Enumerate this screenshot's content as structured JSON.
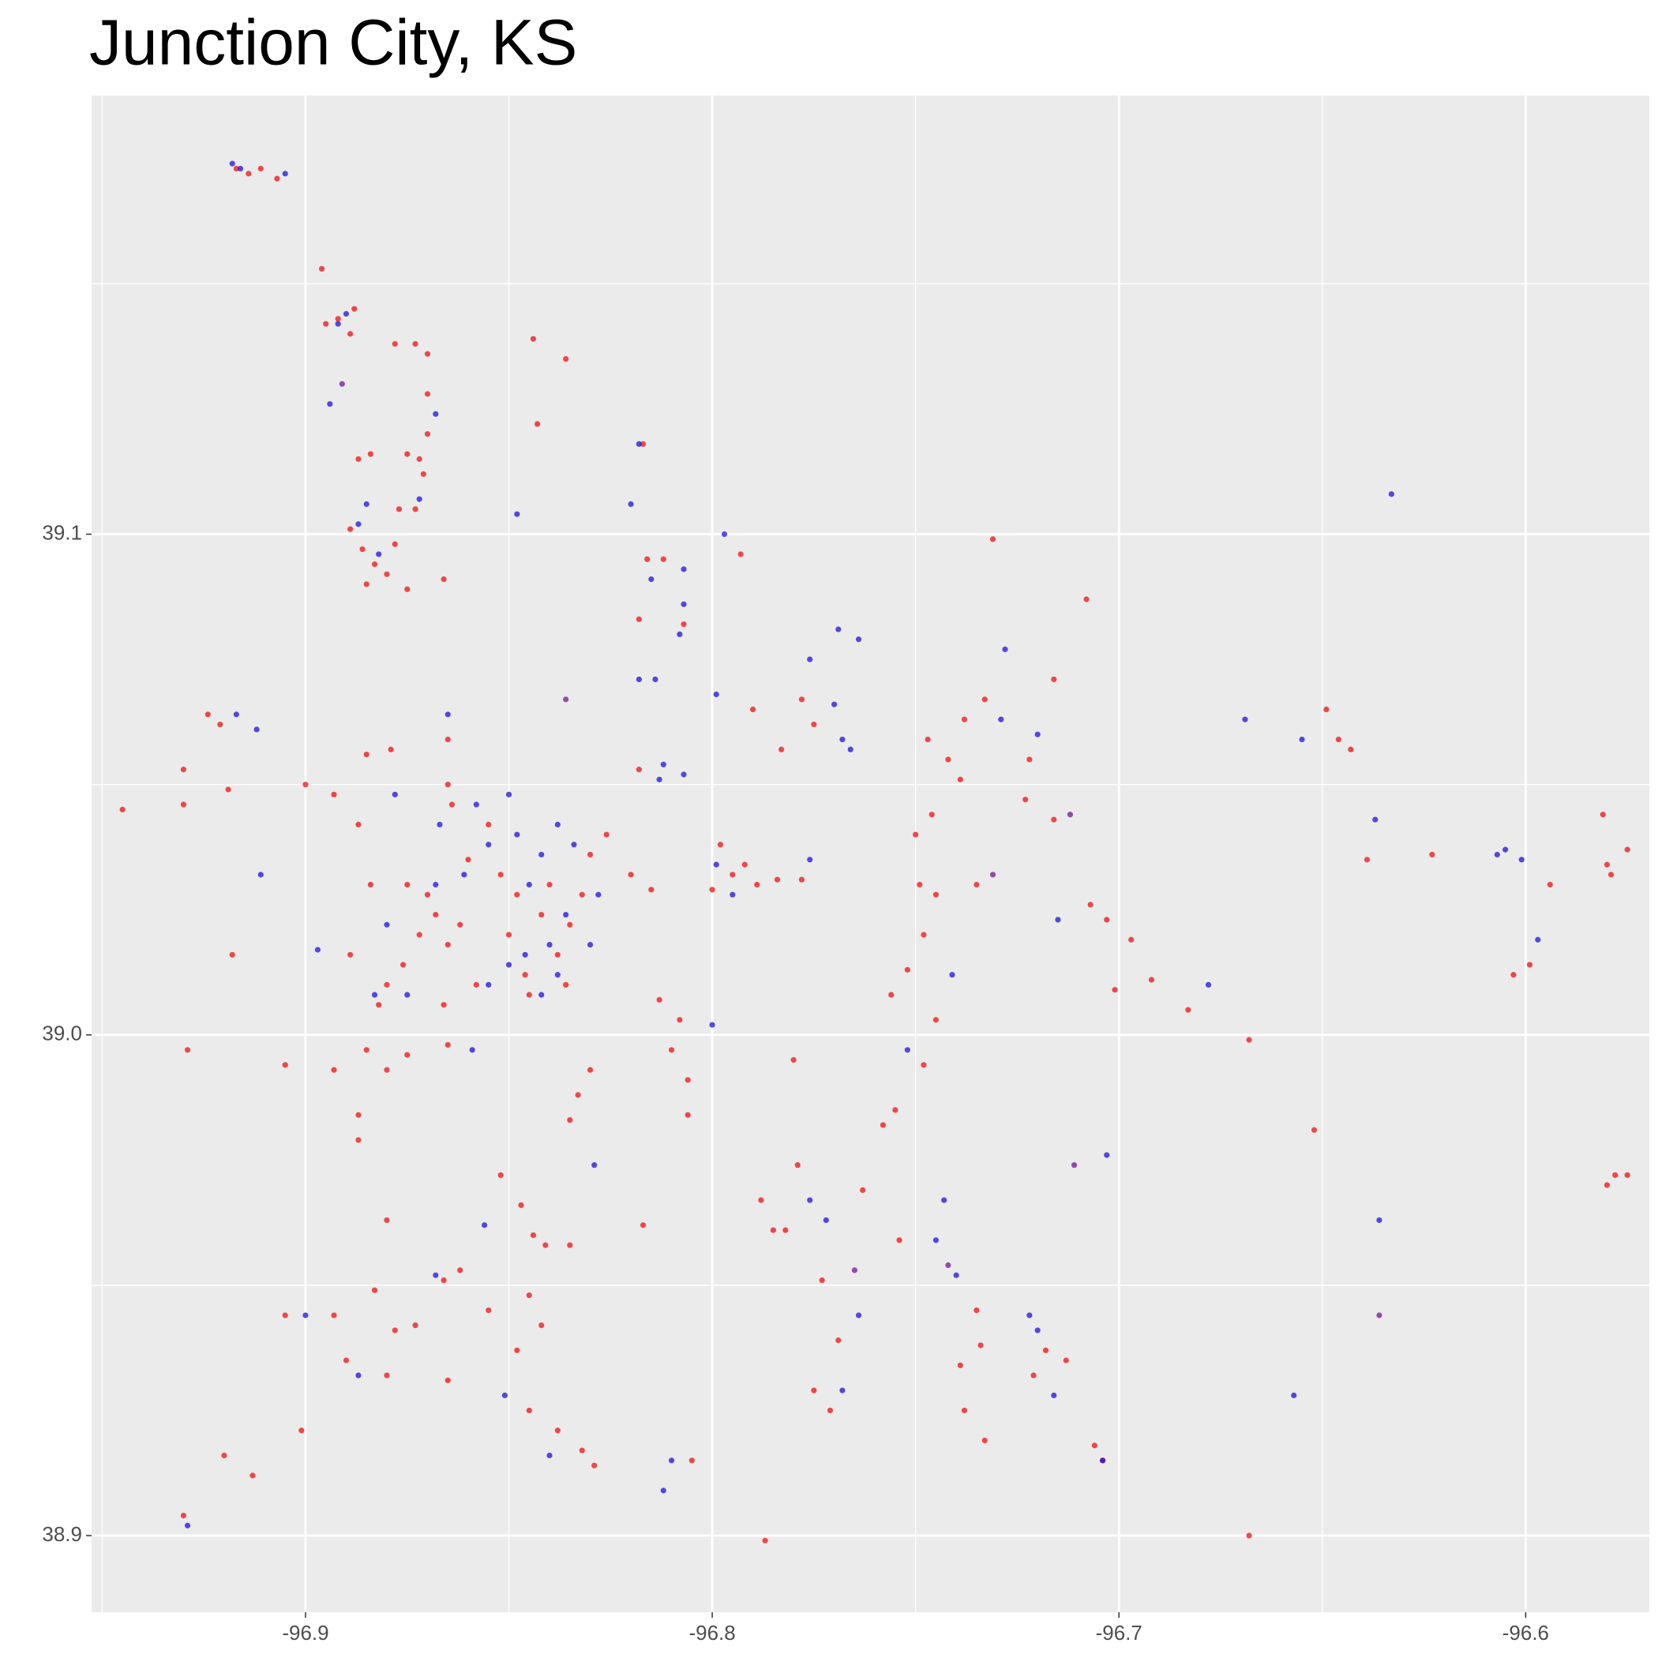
{
  "chart_data": {
    "type": "scatter",
    "title": "Junction City, KS",
    "xlim": [
      -96.9526,
      -96.5696
    ],
    "ylim": [
      38.8847,
      39.1876
    ],
    "xticks": [
      -96.9,
      -96.8,
      -96.7,
      -96.6
    ],
    "yticks": [
      {
        "value": 38.9,
        "label": "38.9"
      },
      {
        "value": 39,
        "label": "39.0"
      },
      {
        "value": 39.1,
        "label": "39.1"
      }
    ],
    "grid": true,
    "series": [
      {
        "color": "#ee1010",
        "x": [
          -96.917,
          -96.914,
          -96.911,
          -96.907,
          -96.896,
          -96.895,
          -96.892,
          -96.889,
          -96.888,
          -96.878,
          -96.873,
          -96.87,
          -96.87,
          -96.87,
          -96.871,
          -96.887,
          -96.884,
          -96.875,
          -96.872,
          -96.877,
          -96.873,
          -96.889,
          -96.886,
          -96.883,
          -96.88,
          -96.885,
          -96.878,
          -96.875,
          -96.866,
          -96.844,
          -96.836,
          -96.843,
          -96.817,
          -96.816,
          -96.812,
          -96.818,
          -96.807,
          -96.793,
          -96.778,
          -96.775,
          -96.783,
          -96.79,
          -96.731,
          -96.708,
          -96.716,
          -96.733,
          -96.738,
          -96.747,
          -96.742,
          -96.739,
          -96.746,
          -96.75,
          -96.749,
          -96.745,
          -96.748,
          -96.752,
          -96.756,
          -96.735,
          -96.723,
          -96.722,
          -96.716,
          -96.707,
          -96.703,
          -96.697,
          -96.701,
          -96.692,
          -96.683,
          -96.668,
          -96.652,
          -96.649,
          -96.646,
          -96.643,
          -96.639,
          -96.623,
          -96.594,
          -96.58,
          -96.581,
          -96.579,
          -96.575,
          -96.603,
          -96.599,
          -96.58,
          -96.578,
          -96.575,
          -96.668,
          -96.745,
          -96.748,
          -96.755,
          -96.758,
          -96.78,
          -96.83,
          -96.833,
          -96.835,
          -96.81,
          -96.806,
          -96.885,
          -96.875,
          -96.865,
          -96.88,
          -96.893,
          -96.905,
          -96.929,
          -96.887,
          -96.887,
          -96.852,
          -96.847,
          -96.844,
          -96.841,
          -96.835,
          -96.88,
          -96.866,
          -96.862,
          -96.855,
          -96.845,
          -96.842,
          -96.893,
          -96.883,
          -96.878,
          -96.873,
          -96.89,
          -96.88,
          -96.865,
          -96.848,
          -96.845,
          -96.838,
          -96.832,
          -96.829,
          -96.905,
          -96.901,
          -96.92,
          -96.913,
          -96.93,
          -96.785,
          -96.788,
          -96.782,
          -96.779,
          -96.773,
          -96.769,
          -96.775,
          -96.771,
          -96.763,
          -96.754,
          -96.735,
          -96.734,
          -96.739,
          -96.738,
          -96.733,
          -96.721,
          -96.718,
          -96.713,
          -96.706,
          -96.704,
          -96.787,
          -96.805,
          -96.817,
          -96.806,
          -96.88,
          -96.876,
          -96.872,
          -96.868,
          -96.865,
          -96.862,
          -96.858,
          -96.85,
          -96.846,
          -96.842,
          -96.838,
          -96.835,
          -96.832,
          -96.84,
          -96.845,
          -96.848,
          -96.836,
          -96.83,
          -96.826,
          -96.855,
          -96.86,
          -96.864,
          -96.865,
          -96.852,
          -96.87,
          -96.875,
          -96.884,
          -96.887,
          -96.893,
          -96.885,
          -96.879,
          -96.82,
          -96.818,
          -96.815,
          -96.798,
          -96.795,
          -96.792,
          -96.789,
          -96.8,
          -96.784,
          -96.778,
          -96.889,
          -96.882,
          -96.866,
          -96.9,
          -96.919,
          -96.93,
          -96.93,
          -96.921,
          -96.924,
          -96.945,
          -96.918,
          -96.865,
          -96.813,
          -96.808
        ],
        "values": [
          39.173,
          39.172,
          39.173,
          39.171,
          39.153,
          39.142,
          39.143,
          39.14,
          39.145,
          39.138,
          39.138,
          39.136,
          39.128,
          39.12,
          39.112,
          39.115,
          39.116,
          39.116,
          39.115,
          39.105,
          39.105,
          39.101,
          39.097,
          39.094,
          39.092,
          39.09,
          39.098,
          39.089,
          39.091,
          39.139,
          39.135,
          39.122,
          39.118,
          39.095,
          39.095,
          39.083,
          39.082,
          39.096,
          39.067,
          39.062,
          39.057,
          39.065,
          39.099,
          39.087,
          39.071,
          39.067,
          39.063,
          39.059,
          39.055,
          39.051,
          39.044,
          39.04,
          39.03,
          39.028,
          39.02,
          39.013,
          39.008,
          39.03,
          39.047,
          39.055,
          39.043,
          39.026,
          39.023,
          39.019,
          39.009,
          39.011,
          39.005,
          38.999,
          38.981,
          39.065,
          39.059,
          39.057,
          39.035,
          39.036,
          39.03,
          39.034,
          39.044,
          39.032,
          39.037,
          39.012,
          39.014,
          38.97,
          38.972,
          38.972,
          38.9,
          39.003,
          38.994,
          38.985,
          38.982,
          38.995,
          38.993,
          38.988,
          38.983,
          38.997,
          38.991,
          38.997,
          38.996,
          38.998,
          38.993,
          38.993,
          38.994,
          38.997,
          38.984,
          38.979,
          38.972,
          38.966,
          38.96,
          38.958,
          38.958,
          38.963,
          38.951,
          38.953,
          38.945,
          38.948,
          38.942,
          38.944,
          38.949,
          38.941,
          38.942,
          38.935,
          38.932,
          38.931,
          38.937,
          38.925,
          38.921,
          38.917,
          38.914,
          38.944,
          38.921,
          38.916,
          38.912,
          38.904,
          38.961,
          38.967,
          38.961,
          38.974,
          38.951,
          38.939,
          38.929,
          38.925,
          38.969,
          38.959,
          38.945,
          38.938,
          38.934,
          38.925,
          38.919,
          38.932,
          38.937,
          38.935,
          38.918,
          38.915,
          38.899,
          38.915,
          38.962,
          38.984,
          39.01,
          39.014,
          39.02,
          39.024,
          39.018,
          39.022,
          39.01,
          39.02,
          39.012,
          39.024,
          39.016,
          39.022,
          39.028,
          39.03,
          39.008,
          39.028,
          39.01,
          39.036,
          39.04,
          39.042,
          39.035,
          39.046,
          39.05,
          39.032,
          39.028,
          39.03,
          39.03,
          39.042,
          39.048,
          39.056,
          39.057,
          39.032,
          39.053,
          39.029,
          39.038,
          39.032,
          39.034,
          39.03,
          39.029,
          39.031,
          39.031,
          39.016,
          39.006,
          39.006,
          39.05,
          39.049,
          39.046,
          39.053,
          39.062,
          39.064,
          39.045,
          39.016,
          39.059,
          39.007,
          39.003
        ]
      },
      {
        "color": "#2010d8",
        "x": [
          -96.918,
          -96.916,
          -96.905,
          -96.892,
          -96.89,
          -96.894,
          -96.887,
          -96.885,
          -96.882,
          -96.872,
          -96.868,
          -96.848,
          -96.818,
          -96.82,
          -96.815,
          -96.807,
          -96.807,
          -96.808,
          -96.797,
          -96.818,
          -96.814,
          -96.799,
          -96.807,
          -96.813,
          -96.812,
          -96.769,
          -96.764,
          -96.776,
          -96.77,
          -96.768,
          -96.766,
          -96.728,
          -96.729,
          -96.72,
          -96.633,
          -96.669,
          -96.655,
          -96.637,
          -96.601,
          -96.605,
          -96.597,
          -96.865,
          -96.858,
          -96.85,
          -96.848,
          -96.842,
          -96.838,
          -96.834,
          -96.84,
          -96.836,
          -96.846,
          -96.842,
          -96.85,
          -96.855,
          -96.845,
          -96.838,
          -96.855,
          -96.861,
          -96.867,
          -96.878,
          -96.88,
          -96.883,
          -96.875,
          -96.868,
          -96.828,
          -96.83,
          -96.799,
          -96.795,
          -96.776,
          -96.859,
          -96.8,
          -96.897,
          -96.911,
          -96.917,
          -96.912,
          -96.829,
          -96.776,
          -96.772,
          -96.752,
          -96.745,
          -96.74,
          -96.743,
          -96.764,
          -96.768,
          -96.722,
          -96.716,
          -96.704,
          -96.703,
          -96.657,
          -96.636,
          -96.812,
          -96.81,
          -96.856,
          -96.868,
          -96.851,
          -96.84,
          -96.887,
          -96.929,
          -96.9,
          -96.678,
          -96.741,
          -96.72,
          -96.715,
          -96.607
        ],
        "values": [
          39.174,
          39.173,
          39.172,
          39.142,
          39.144,
          39.126,
          39.102,
          39.106,
          39.096,
          39.107,
          39.124,
          39.104,
          39.118,
          39.106,
          39.091,
          39.093,
          39.086,
          39.08,
          39.1,
          39.071,
          39.071,
          39.068,
          39.052,
          39.051,
          39.054,
          39.081,
          39.079,
          39.075,
          39.066,
          39.059,
          39.057,
          39.077,
          39.063,
          39.06,
          39.108,
          39.063,
          39.059,
          39.043,
          39.035,
          39.037,
          39.019,
          39.064,
          39.046,
          39.048,
          39.04,
          39.036,
          39.042,
          39.038,
          39.018,
          39.024,
          39.016,
          39.008,
          39.014,
          39.01,
          39.03,
          39.012,
          39.038,
          39.032,
          39.042,
          39.048,
          39.022,
          39.008,
          39.008,
          39.03,
          39.028,
          39.018,
          39.034,
          39.028,
          39.035,
          38.997,
          39.002,
          39.017,
          39.032,
          39.064,
          39.061,
          38.974,
          38.967,
          38.963,
          38.997,
          38.959,
          38.952,
          38.967,
          38.944,
          38.929,
          38.944,
          38.928,
          38.915,
          38.976,
          38.928,
          38.963,
          38.909,
          38.915,
          38.962,
          38.952,
          38.928,
          38.916,
          38.932,
          38.902,
          38.944,
          39.01,
          39.012,
          38.941,
          39.023,
          39.036
        ]
      },
      {
        "color": "#701890",
        "x": [
          -96.891,
          -96.836,
          -96.711,
          -96.742,
          -96.636,
          -96.765,
          -96.712,
          -96.731
        ],
        "values": [
          39.13,
          39.067,
          38.974,
          38.954,
          38.944,
          38.953,
          39.044,
          39.032
        ]
      }
    ]
  }
}
